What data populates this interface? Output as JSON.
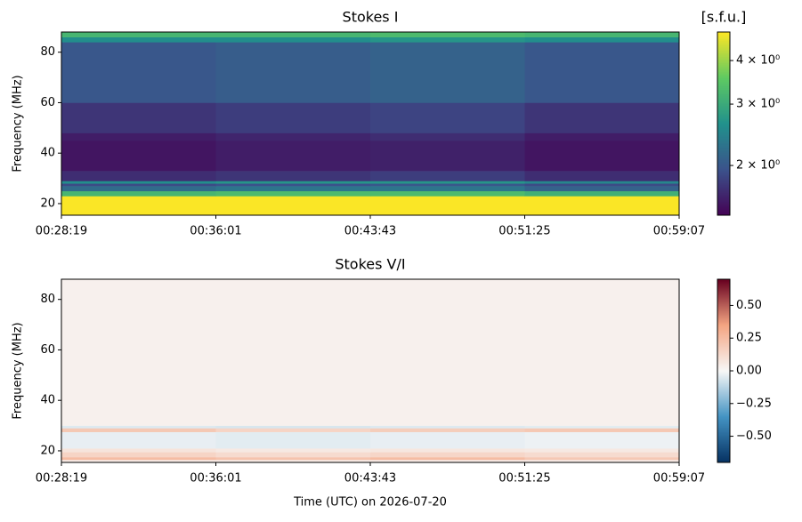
{
  "chart_data": [
    {
      "type": "heatmap",
      "title": "Stokes I",
      "colorbar_label": "[s.f.u.]",
      "ylabel": "Frequency (MHz)",
      "colormap": "viridis",
      "cscale": "log",
      "clim": [
        1.44,
        4.83
      ],
      "cticks": [
        {
          "value": 2,
          "label": "2 × 10⁰"
        },
        {
          "value": 3,
          "label": "3 × 10⁰"
        },
        {
          "value": 4,
          "label": "4 × 10⁰"
        }
      ],
      "xlim": [
        "00:28:19",
        "00:59:07"
      ],
      "xticks": [
        "00:28:19",
        "00:36:01",
        "00:43:43",
        "00:51:25",
        "00:59:07"
      ],
      "ylim": [
        15.4,
        88
      ],
      "yticks": [
        20,
        40,
        60,
        80
      ],
      "x_edges": [
        "00:28:19",
        "00:36:01",
        "00:43:43",
        "00:51:25",
        "00:59:07"
      ],
      "y_edges": [
        15.4,
        16,
        23,
        25,
        27,
        28,
        29,
        33,
        45,
        48,
        60,
        84,
        86,
        88
      ],
      "z": [
        [
          4.8,
          4.8,
          4.8,
          4.8
        ],
        [
          4.8,
          4.8,
          4.8,
          4.8
        ],
        [
          3.2,
          3.3,
          3.3,
          3.1
        ],
        [
          2.2,
          2.3,
          2.3,
          2.1
        ],
        [
          1.9,
          1.95,
          2.0,
          1.9
        ],
        [
          2.6,
          2.7,
          2.7,
          2.5
        ],
        [
          1.7,
          1.75,
          1.8,
          1.7
        ],
        [
          1.55,
          1.6,
          1.62,
          1.55
        ],
        [
          1.6,
          1.65,
          1.7,
          1.6
        ],
        [
          1.75,
          1.8,
          1.85,
          1.75
        ],
        [
          2.0,
          2.05,
          2.1,
          2.0
        ],
        [
          2.6,
          2.6,
          2.7,
          2.6
        ],
        [
          3.2,
          3.2,
          3.3,
          3.2
        ]
      ]
    },
    {
      "type": "heatmap",
      "title": "Stokes V/I",
      "ylabel": "Frequency (MHz)",
      "xlabel": "Time (UTC) on 2026-07-20",
      "colormap": "RdBu_r",
      "cscale": "linear",
      "clim": [
        -0.7,
        0.7
      ],
      "cticks": [
        {
          "value": -0.5,
          "label": "−0.50"
        },
        {
          "value": -0.25,
          "label": "−0.25"
        },
        {
          "value": 0,
          "label": "0.00"
        },
        {
          "value": 0.25,
          "label": "0.25"
        },
        {
          "value": 0.5,
          "label": "0.50"
        }
      ],
      "xlim": [
        "00:28:19",
        "00:59:07"
      ],
      "xticks": [
        "00:28:19",
        "00:36:01",
        "00:43:43",
        "00:51:25",
        "00:59:07"
      ],
      "ylim": [
        15.4,
        88
      ],
      "yticks": [
        20,
        40,
        60,
        80
      ],
      "x_edges": [
        "00:28:19",
        "00:36:01",
        "00:43:43",
        "00:51:25",
        "00:59:07"
      ],
      "y_edges": [
        15.4,
        16.5,
        17.5,
        19.5,
        21,
        27.5,
        29,
        30,
        88
      ],
      "z": [
        [
          0.05,
          0.05,
          0.05,
          0.05
        ],
        [
          0.25,
          0.22,
          0.25,
          0.2
        ],
        [
          0.15,
          0.12,
          0.14,
          0.12
        ],
        [
          0.08,
          0.06,
          0.07,
          0.06
        ],
        [
          -0.03,
          -0.04,
          -0.03,
          -0.02
        ],
        [
          0.2,
          0.15,
          0.18,
          0.2
        ],
        [
          -0.05,
          -0.06,
          -0.05,
          -0.04
        ],
        [
          0.03,
          0.03,
          0.03,
          0.03
        ]
      ]
    }
  ]
}
